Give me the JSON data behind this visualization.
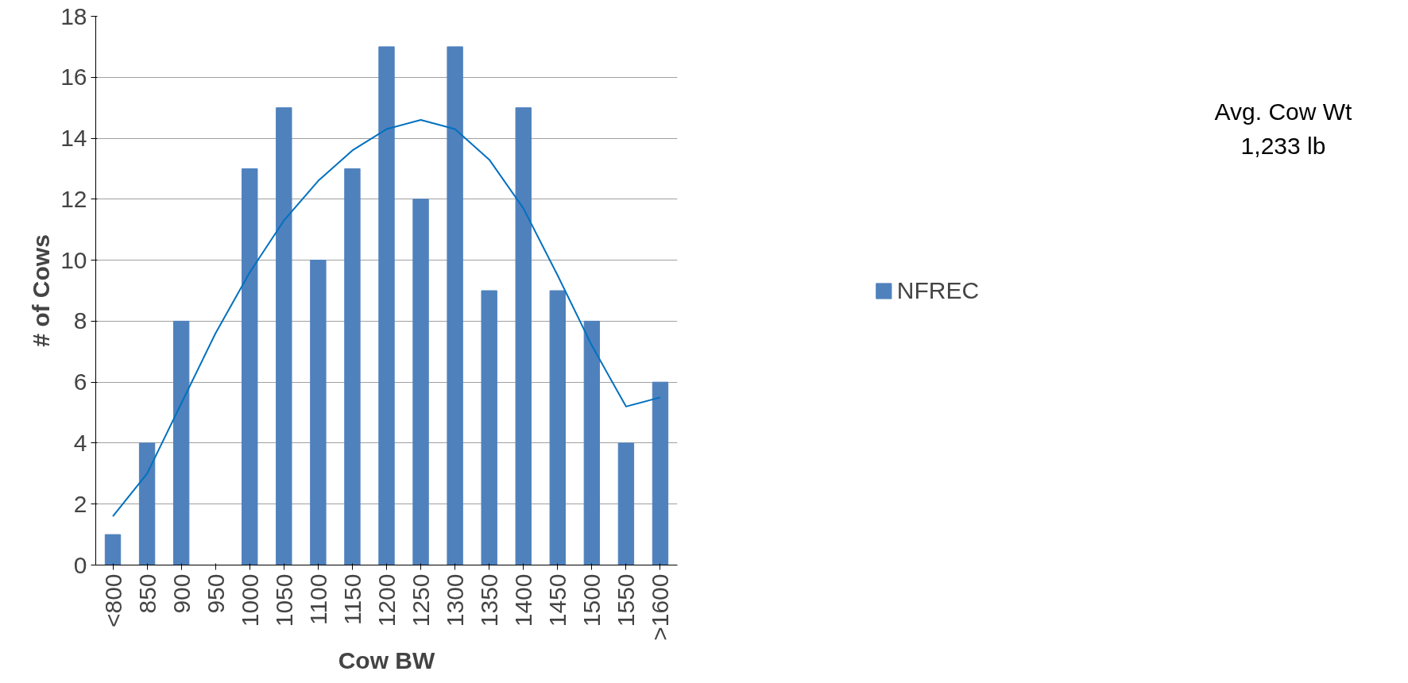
{
  "chart_data": {
    "type": "bar",
    "xlabel": "Cow BW",
    "ylabel": "# of Cows",
    "categories": [
      "<800",
      "850",
      "900",
      "950",
      "1000",
      "1050",
      "1100",
      "1150",
      "1200",
      "1250",
      "1300",
      "1350",
      "1400",
      "1450",
      "1500",
      "1550",
      ">1600"
    ],
    "series": [
      {
        "name": "NFREC",
        "color": "#4f81bd",
        "values": [
          1,
          4,
          8,
          0,
          13,
          15,
          10,
          13,
          17,
          12,
          17,
          9,
          15,
          9,
          8,
          4,
          6
        ]
      },
      {
        "type": "line",
        "color": "#0070c0",
        "values": [
          1.6,
          3,
          5.3,
          7.6,
          9.6,
          11.3,
          12.6,
          13.6,
          14.3,
          14.6,
          14.3,
          13.3,
          11.7,
          9.5,
          7.2,
          5.2,
          5.5
        ]
      }
    ],
    "ylim": [
      0,
      18
    ],
    "yticks": [
      0,
      2,
      4,
      6,
      8,
      10,
      12,
      14,
      16,
      18
    ],
    "grid": "y",
    "legend": "right",
    "annotations": [
      "Avg. Cow Wt\n1,233 lb"
    ]
  }
}
